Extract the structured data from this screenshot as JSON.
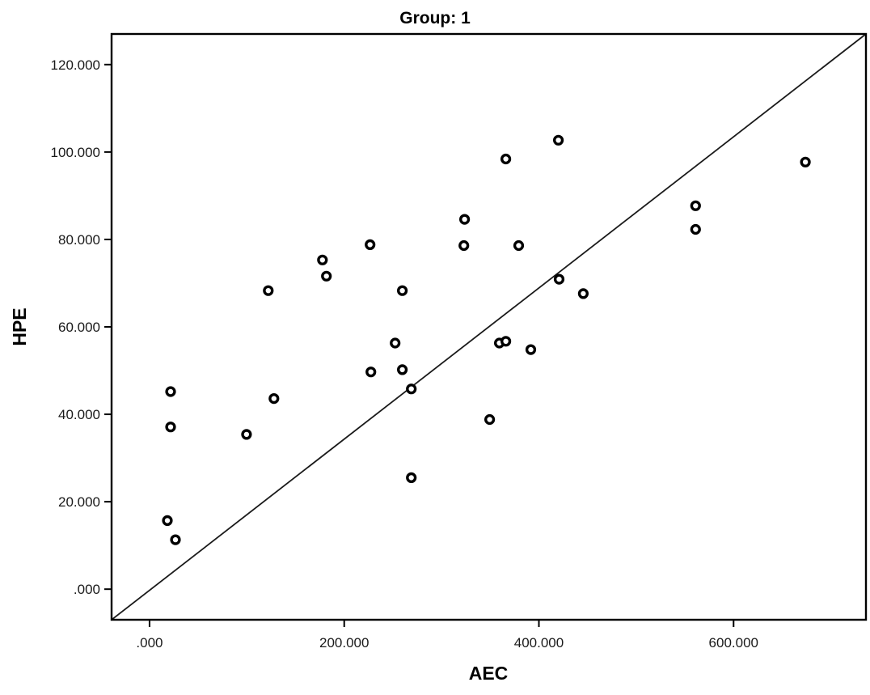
{
  "colors": {
    "foreground": "#000000",
    "background": "#ffffff"
  },
  "chart_data": {
    "type": "scatter",
    "title": "Group: 1",
    "xlabel": "AEC",
    "ylabel": "HPE",
    "grid": false,
    "legend_position": "none",
    "xlim": [
      -39,
      736
    ],
    "ylim": [
      -7,
      127
    ],
    "x_ticks": [
      0,
      200,
      400,
      600
    ],
    "x_tick_labels": [
      ".000",
      "200.000",
      "400.000",
      "600.000"
    ],
    "y_ticks": [
      0,
      20,
      40,
      60,
      80,
      100,
      120
    ],
    "y_tick_labels": [
      ".000",
      "20.000",
      "40.000",
      "60.000",
      "80.000",
      "100.000",
      "120.000"
    ],
    "marker": {
      "shape": "open-circle",
      "color": "#000000",
      "fill": "#ffffff"
    },
    "reference_line": {
      "style": "solid",
      "color": "#1a1a1a",
      "description": "diagonal line spanning plot frame from bottom-left corner to top-right corner",
      "from": "bottom-left-corner",
      "to": "top-right-corner"
    },
    "points": [
      {
        "x": 18.3,
        "y": 15.7
      },
      {
        "x": 21.6,
        "y": 45.2
      },
      {
        "x": 21.6,
        "y": 37.1
      },
      {
        "x": 26.6,
        "y": 11.3
      },
      {
        "x": 99.6,
        "y": 35.4
      },
      {
        "x": 122.0,
        "y": 68.3
      },
      {
        "x": 127.8,
        "y": 43.6
      },
      {
        "x": 177.6,
        "y": 75.3
      },
      {
        "x": 181.7,
        "y": 71.6
      },
      {
        "x": 226.6,
        "y": 78.8
      },
      {
        "x": 227.4,
        "y": 49.7
      },
      {
        "x": 252.3,
        "y": 56.3
      },
      {
        "x": 259.7,
        "y": 50.2
      },
      {
        "x": 259.7,
        "y": 68.3
      },
      {
        "x": 268.9,
        "y": 45.8
      },
      {
        "x": 268.9,
        "y": 25.5
      },
      {
        "x": 322.9,
        "y": 78.6
      },
      {
        "x": 323.7,
        "y": 84.6
      },
      {
        "x": 349.4,
        "y": 38.8
      },
      {
        "x": 359.4,
        "y": 56.3
      },
      {
        "x": 366.0,
        "y": 56.7
      },
      {
        "x": 366.0,
        "y": 98.4
      },
      {
        "x": 379.2,
        "y": 78.6
      },
      {
        "x": 391.7,
        "y": 54.8
      },
      {
        "x": 420.0,
        "y": 102.7
      },
      {
        "x": 420.8,
        "y": 70.9
      },
      {
        "x": 445.6,
        "y": 67.6
      },
      {
        "x": 561.0,
        "y": 87.7
      },
      {
        "x": 561.0,
        "y": 82.3
      },
      {
        "x": 673.8,
        "y": 97.7
      }
    ]
  }
}
